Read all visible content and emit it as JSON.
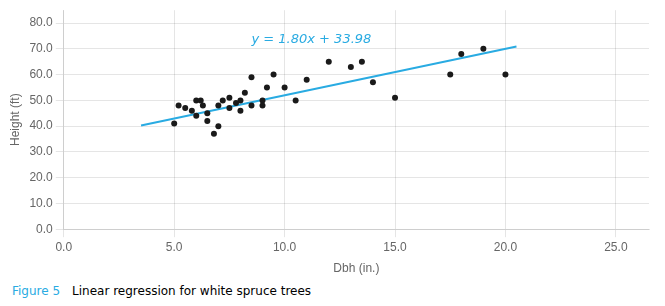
{
  "chart_data": {
    "type": "scatter",
    "xlabel": "Dbh (in.)",
    "ylabel": "Height (ft)",
    "series": [
      {
        "type": "scatter",
        "color": "#1a1a1a",
        "x": [
          5.0,
          5.2,
          5.5,
          5.8,
          6.0,
          6.0,
          6.2,
          6.3,
          6.5,
          6.5,
          6.8,
          7.0,
          7.0,
          7.2,
          7.5,
          7.5,
          7.8,
          8.0,
          8.0,
          8.2,
          8.5,
          8.5,
          9.0,
          9.0,
          9.2,
          9.5,
          10.0,
          10.5,
          11.0,
          12.0,
          13.0,
          13.5,
          14.0,
          15.0,
          17.5,
          18.0,
          19.0,
          20.0
        ],
        "values": [
          41.0,
          48.0,
          47.0,
          46.0,
          50.0,
          44.0,
          50.0,
          48.0,
          45.0,
          42.0,
          37.0,
          48.0,
          40.0,
          50.0,
          51.0,
          47.0,
          49.0,
          50.0,
          46.0,
          53.0,
          48.0,
          59.0,
          50.0,
          48.0,
          55.0,
          60.0,
          55.0,
          50.0,
          58.0,
          65.0,
          63.0,
          65.0,
          57.0,
          51.0,
          60.0,
          68.0,
          70.0,
          60.0
        ]
      },
      {
        "type": "line",
        "color": "#29ABE2",
        "x": [
          3.5,
          20.5
        ],
        "values": [
          40.28,
          70.88
        ]
      }
    ],
    "xlim": [
      0.0,
      26.5
    ],
    "ylim": [
      0.0,
      85.0
    ],
    "xticks": [
      {
        "value": 0,
        "label": "0.0"
      },
      {
        "value": 5,
        "label": "5.0"
      },
      {
        "value": 10,
        "label": "10.0"
      },
      {
        "value": 15,
        "label": "15.0"
      },
      {
        "value": 20,
        "label": "20.0"
      },
      {
        "value": 25,
        "label": "25.0"
      }
    ],
    "yticks": [
      {
        "value": 0,
        "label": "0.0"
      },
      {
        "value": 10,
        "label": "10.0"
      },
      {
        "value": 20,
        "label": "20.0"
      },
      {
        "value": 30,
        "label": "30.0"
      },
      {
        "value": 40,
        "label": "40.0"
      },
      {
        "value": 50,
        "label": "50.0"
      },
      {
        "value": 60,
        "label": "60.0"
      },
      {
        "value": 70,
        "label": "70.0"
      },
      {
        "value": 80,
        "label": "80.0"
      }
    ],
    "grid": true,
    "annotations": [
      {
        "text": "y = 1.80x + 33.98",
        "x": 8.5,
        "y": 76.0,
        "color": "#29ABE2"
      }
    ],
    "caption": [
      {
        "text": "Figure 5",
        "color": "#29ABE2"
      },
      {
        "text": "Linear regression for white spruce trees"
      }
    ]
  }
}
